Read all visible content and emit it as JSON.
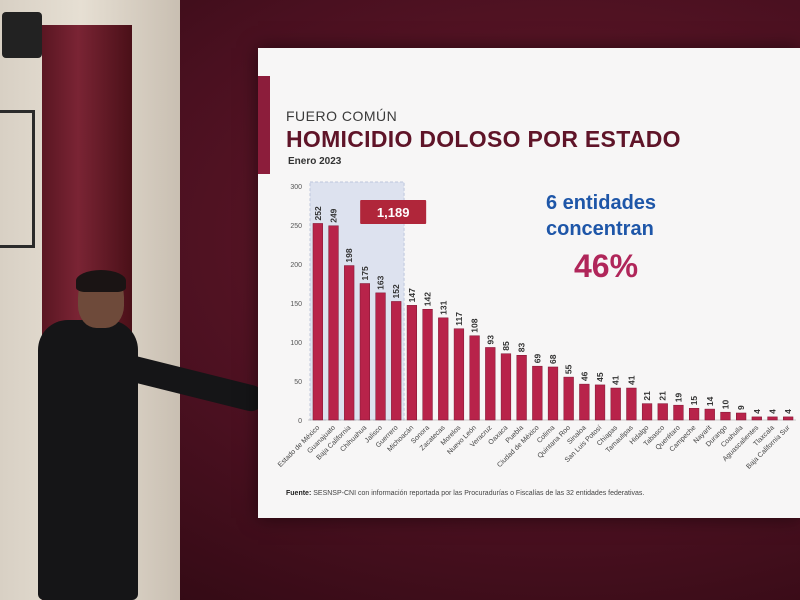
{
  "header": {
    "kicker": "FUERO COMÚN",
    "title": "HOMICIDIO DOLOSO POR ESTADO",
    "period": "Enero 2023"
  },
  "callout": {
    "line1": "6 entidades",
    "line2": "concentran",
    "percent": "46%"
  },
  "highlight": {
    "label": "1,189",
    "first_category_index": 0,
    "count": 6,
    "fill_color": "#c8d3ea",
    "label_color": "#b0263a"
  },
  "source": {
    "prefix": "Fuente:",
    "text": "SESNSP-CNI con información reportada por las Procuradurías o Fiscalías de las 32 entidades federativas."
  },
  "colors": {
    "bar": "#b8234a",
    "bar_edge": "#7d1431",
    "title": "#5f1428",
    "callout": "#1e56a8",
    "percent": "#b0265a"
  },
  "chart_data": {
    "type": "bar",
    "title": "HOMICIDIO DOLOSO POR ESTADO",
    "subtitle": "Enero 2023",
    "xlabel": "",
    "ylabel": "",
    "ylim": [
      0,
      300
    ],
    "yticks": [
      0,
      50,
      100,
      150,
      200,
      250,
      300
    ],
    "grid": false,
    "legend": "none",
    "categories": [
      "Estado de México",
      "Guanajuato",
      "Baja California",
      "Chihuahua",
      "Jalisco",
      "Guerrero",
      "Michoacán",
      "Sonora",
      "Zacatecas",
      "Morelos",
      "Nuevo León",
      "Veracruz",
      "Oaxaca",
      "Puebla",
      "Ciudad de México",
      "Colima",
      "Quintana Roo",
      "Sinaloa",
      "San Luis Potosí",
      "Chiapas",
      "Tamaulipas",
      "Hidalgo",
      "Tabasco",
      "Querétaro",
      "Campeche",
      "Nayarit",
      "Durango",
      "Coahuila",
      "Aguascalientes",
      "Tlaxcala",
      "Baja California Sur"
    ],
    "values": [
      252,
      249,
      198,
      175,
      163,
      152,
      147,
      142,
      131,
      117,
      108,
      93,
      85,
      83,
      69,
      68,
      55,
      46,
      45,
      41,
      41,
      21,
      21,
      19,
      15,
      14,
      10,
      9,
      4,
      4,
      4
    ]
  }
}
